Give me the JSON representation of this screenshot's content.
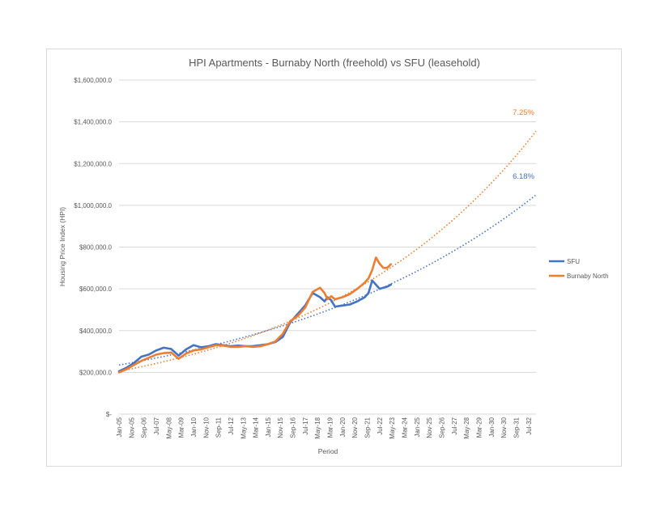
{
  "chart_data": {
    "type": "line",
    "title": "HPI Apartments - Burnaby North (freehold) vs SFU (leasehold)",
    "xlabel": "Period",
    "ylabel": "Housing Price Index (HPI)",
    "ylim": [
      0,
      1600000
    ],
    "y_ticks": [
      {
        "value": 0,
        "label": "$-"
      },
      {
        "value": 200000,
        "label": "$200,000.0"
      },
      {
        "value": 400000,
        "label": "$400,000.0"
      },
      {
        "value": 600000,
        "label": "$600,000.0"
      },
      {
        "value": 800000,
        "label": "$800,000.0"
      },
      {
        "value": 1000000,
        "label": "$1,000,000.0"
      },
      {
        "value": 1200000,
        "label": "$1,200,000.0"
      },
      {
        "value": 1400000,
        "label": "$1,400,000.0"
      },
      {
        "value": 1600000,
        "label": "$1,600,000.0"
      }
    ],
    "x_range_years": [
      2005.0,
      2033.0
    ],
    "x_ticks": [
      {
        "year": 2005.0,
        "label": "Jan-05"
      },
      {
        "year": 2005.833,
        "label": "Nov-05"
      },
      {
        "year": 2006.667,
        "label": "Sep-06"
      },
      {
        "year": 2007.5,
        "label": "Jul-07"
      },
      {
        "year": 2008.333,
        "label": "May-08"
      },
      {
        "year": 2009.167,
        "label": "Mar-09"
      },
      {
        "year": 2010.0,
        "label": "Jan-10"
      },
      {
        "year": 2010.833,
        "label": "Nov-10"
      },
      {
        "year": 2011.667,
        "label": "Sep-11"
      },
      {
        "year": 2012.5,
        "label": "Jul-12"
      },
      {
        "year": 2013.333,
        "label": "May-13"
      },
      {
        "year": 2014.167,
        "label": "Mar-14"
      },
      {
        "year": 2015.0,
        "label": "Jan-15"
      },
      {
        "year": 2015.833,
        "label": "Nov-15"
      },
      {
        "year": 2016.667,
        "label": "Sep-16"
      },
      {
        "year": 2017.5,
        "label": "Jul-17"
      },
      {
        "year": 2018.333,
        "label": "May-18"
      },
      {
        "year": 2019.167,
        "label": "Mar-19"
      },
      {
        "year": 2020.0,
        "label": "Jan-20"
      },
      {
        "year": 2020.833,
        "label": "Nov-20"
      },
      {
        "year": 2021.667,
        "label": "Sep-21"
      },
      {
        "year": 2022.5,
        "label": "Jul-22"
      },
      {
        "year": 2023.333,
        "label": "May-23"
      },
      {
        "year": 2024.167,
        "label": "Mar-24"
      },
      {
        "year": 2025.0,
        "label": "Jan-25"
      },
      {
        "year": 2025.833,
        "label": "Nov-25"
      },
      {
        "year": 2026.667,
        "label": "Sep-26"
      },
      {
        "year": 2027.5,
        "label": "Jul-27"
      },
      {
        "year": 2028.333,
        "label": "May-28"
      },
      {
        "year": 2029.167,
        "label": "Mar-29"
      },
      {
        "year": 2030.0,
        "label": "Jan-30"
      },
      {
        "year": 2030.833,
        "label": "Nov-30"
      },
      {
        "year": 2031.667,
        "label": "Sep-31"
      },
      {
        "year": 2032.5,
        "label": "Jul-32"
      }
    ],
    "series": [
      {
        "name": "SFU",
        "color": "#4472c4",
        "x": [
          2005.0,
          2005.5,
          2006.0,
          2006.5,
          2007.0,
          2007.5,
          2008.0,
          2008.5,
          2009.0,
          2009.5,
          2010.0,
          2010.5,
          2011.0,
          2011.5,
          2012.0,
          2012.5,
          2013.0,
          2013.5,
          2014.0,
          2014.5,
          2015.0,
          2015.5,
          2016.0,
          2016.5,
          2017.0,
          2017.5,
          2018.0,
          2018.5,
          2018.8,
          2019.0,
          2019.25,
          2019.5,
          2020.0,
          2020.5,
          2021.0,
          2021.5,
          2021.75,
          2022.0,
          2022.25,
          2022.5,
          2022.75,
          2023.0,
          2023.25
        ],
        "values": [
          205000,
          222000,
          245000,
          275000,
          285000,
          305000,
          318000,
          312000,
          280000,
          310000,
          330000,
          320000,
          325000,
          335000,
          330000,
          325000,
          328000,
          325000,
          326000,
          330000,
          335000,
          345000,
          370000,
          440000,
          480000,
          520000,
          580000,
          560000,
          540000,
          560000,
          545000,
          515000,
          520000,
          525000,
          540000,
          560000,
          580000,
          640000,
          620000,
          600000,
          605000,
          610000,
          620000
        ]
      },
      {
        "name": "Burnaby North",
        "color": "#ed7d31",
        "x": [
          2005.0,
          2005.5,
          2006.0,
          2006.5,
          2007.0,
          2007.5,
          2008.0,
          2008.5,
          2009.0,
          2009.5,
          2010.0,
          2010.5,
          2011.0,
          2011.5,
          2012.0,
          2012.5,
          2013.0,
          2013.5,
          2014.0,
          2014.5,
          2015.0,
          2015.5,
          2016.0,
          2016.5,
          2017.0,
          2017.5,
          2018.0,
          2018.5,
          2018.8,
          2019.0,
          2019.25,
          2019.5,
          2020.0,
          2020.5,
          2021.0,
          2021.5,
          2021.75,
          2022.0,
          2022.25,
          2022.5,
          2022.75,
          2023.0,
          2023.25
        ],
        "values": [
          200000,
          215000,
          235000,
          255000,
          270000,
          285000,
          292000,
          295000,
          265000,
          290000,
          305000,
          310000,
          320000,
          330000,
          328000,
          322000,
          322000,
          325000,
          322000,
          325000,
          335000,
          348000,
          385000,
          445000,
          470000,
          510000,
          585000,
          605000,
          580000,
          550000,
          565000,
          550000,
          560000,
          575000,
          600000,
          630000,
          650000,
          690000,
          750000,
          720000,
          700000,
          700000,
          718000
        ]
      }
    ],
    "trendlines": [
      {
        "series": "SFU",
        "type": "exponential",
        "rate_label": "6.18%",
        "color": "#4472c4",
        "start_value": 235000,
        "end_value": 1050000,
        "x_start": 2005.0,
        "x_end": 2033.0
      },
      {
        "series": "Burnaby North",
        "type": "exponential",
        "rate_label": "7.25%",
        "color": "#ed7d31",
        "start_value": 205000,
        "end_value": 1355000,
        "x_start": 2005.0,
        "x_end": 2033.0
      }
    ],
    "legend": [
      {
        "label": "SFU",
        "color": "#4472c4"
      },
      {
        "label": "Burnaby North",
        "color": "#ed7d31"
      }
    ],
    "legend_placement": "right",
    "grid": true
  }
}
